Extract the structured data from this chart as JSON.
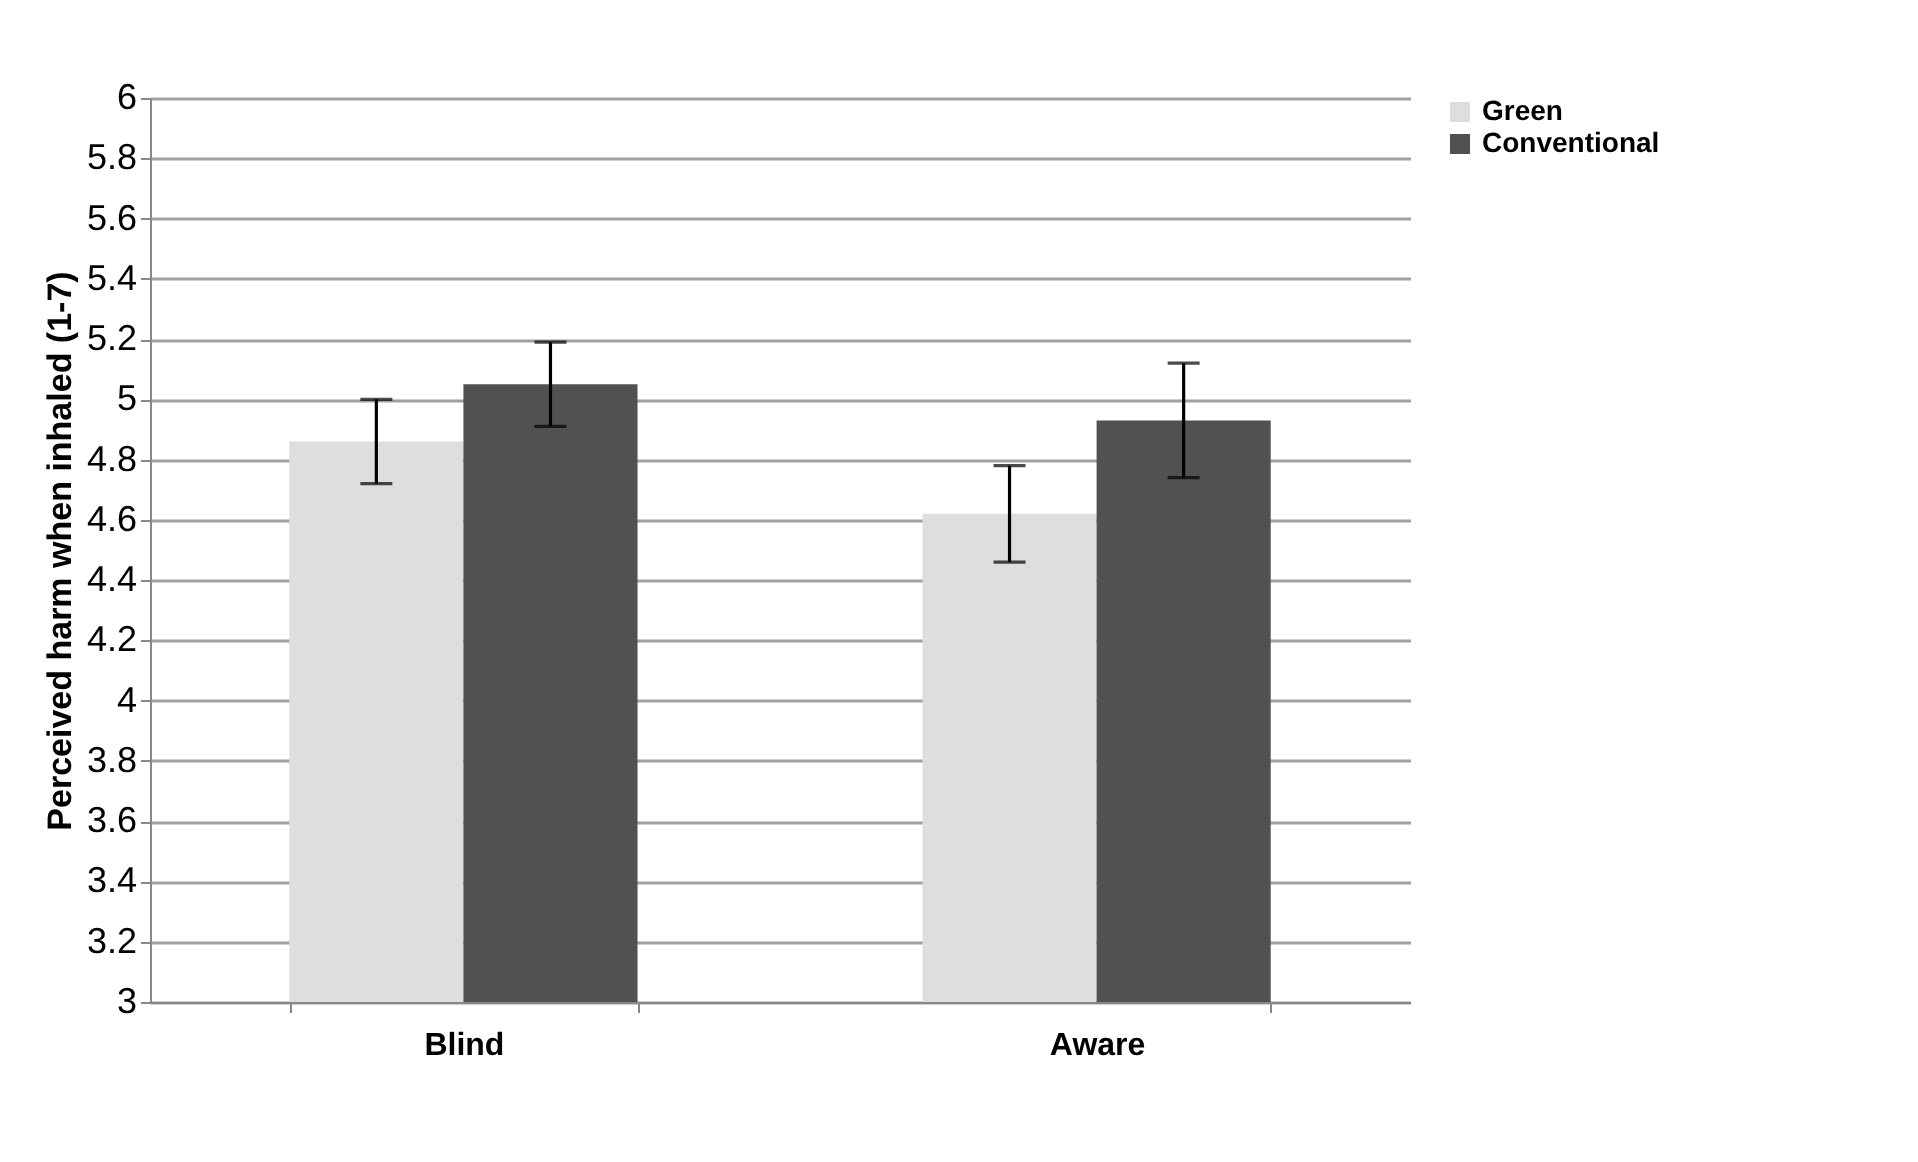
{
  "chart_data": {
    "type": "bar",
    "ylabel": "Perceived harm when inhaled (1-7)",
    "categories": [
      "Blind",
      "Aware"
    ],
    "series": [
      {
        "name": "Green",
        "color": "#dedede",
        "values": [
          4.86,
          4.62
        ],
        "errors": [
          0.14,
          0.16
        ]
      },
      {
        "name": "Conventional",
        "color": "#515151",
        "values": [
          5.05,
          4.93
        ],
        "errors": [
          0.14,
          0.19
        ]
      }
    ],
    "ylim": [
      3,
      6
    ],
    "yticks": [
      3,
      3.2,
      3.4,
      3.6,
      3.8,
      4,
      4.2,
      4.4,
      4.6,
      4.8,
      5,
      5.2,
      5.4,
      5.6,
      5.8,
      6
    ],
    "grid": "y",
    "legend": "right"
  }
}
